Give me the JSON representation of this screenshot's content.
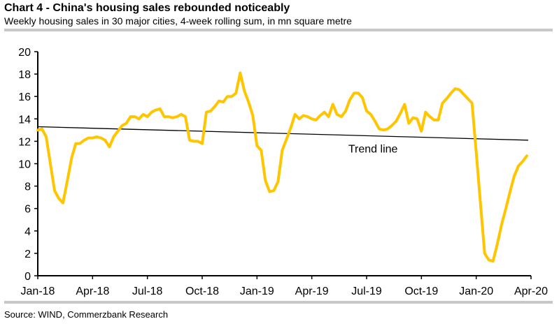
{
  "header": {
    "title": "Chart 4 - China's housing sales rebounded noticeably",
    "subtitle": "Weekly housing sales in 30 major cities, 4-week rolling sum, in mn square metre"
  },
  "footer": {
    "source": "Source: WIND, Commerzbank Research"
  },
  "chart_data": {
    "type": "line",
    "title": "Chart 4 - China's housing sales rebounded noticeably",
    "subtitle": "Weekly housing sales in 30 major cities, 4-week rolling sum, in mn square metre",
    "xlabel": "",
    "ylabel": "",
    "ylim": [
      0,
      20
    ],
    "yticks": [
      0,
      2,
      4,
      6,
      8,
      10,
      12,
      14,
      16,
      18,
      20
    ],
    "xticks": [
      "Jan-18",
      "Apr-18",
      "Jul-18",
      "Oct-18",
      "Jan-19",
      "Apr-19",
      "Jul-19",
      "Oct-19",
      "Jan-20",
      "Apr-20"
    ],
    "x_unit": "months since Jan-18",
    "xlim": [
      0,
      27
    ],
    "grid": false,
    "legend": "none",
    "colors": {
      "series": "#FFC600",
      "trend": "#000000"
    },
    "series": [
      {
        "name": "Housing sales (4-week rolling sum)",
        "x": [
          0,
          0.23,
          0.46,
          0.69,
          0.92,
          1.15,
          1.38,
          1.62,
          1.85,
          2.08,
          2.31,
          2.54,
          2.77,
          3.0,
          3.23,
          3.46,
          3.69,
          3.92,
          4.15,
          4.38,
          4.62,
          4.85,
          5.08,
          5.31,
          5.54,
          5.77,
          6.0,
          6.23,
          6.46,
          6.69,
          6.92,
          7.15,
          7.38,
          7.62,
          7.85,
          8.08,
          8.31,
          8.54,
          8.77,
          9.0,
          9.23,
          9.46,
          9.69,
          9.92,
          10.15,
          10.38,
          10.62,
          10.85,
          11.08,
          11.31,
          11.54,
          11.77,
          12.0,
          12.23,
          12.46,
          12.69,
          12.92,
          13.15,
          13.38,
          13.62,
          13.85,
          14.08,
          14.31,
          14.54,
          14.77,
          15.0,
          15.23,
          15.46,
          15.69,
          15.92,
          16.15,
          16.38,
          16.62,
          16.85,
          17.08,
          17.31,
          17.54,
          17.77,
          18.0,
          18.23,
          18.46,
          18.69,
          18.92,
          19.15,
          19.38,
          19.62,
          19.85,
          20.08,
          20.31,
          20.54,
          20.77,
          21.0,
          21.23,
          21.46,
          21.69,
          21.92,
          22.15,
          22.38,
          22.62,
          22.85,
          23.08,
          23.31,
          23.54,
          23.77,
          24.0,
          24.23,
          24.46,
          24.69,
          24.92,
          25.15,
          25.38,
          25.62,
          25.85,
          26.08,
          26.31,
          26.54,
          26.77
        ],
        "values": [
          13.0,
          13.1,
          12.4,
          10.0,
          7.6,
          6.9,
          6.5,
          8.5,
          10.5,
          11.8,
          11.8,
          12.1,
          12.3,
          12.3,
          12.4,
          12.3,
          12.1,
          11.5,
          12.4,
          12.9,
          13.4,
          13.6,
          14.2,
          14.2,
          14.0,
          14.4,
          14.2,
          14.6,
          14.8,
          14.9,
          14.2,
          14.2,
          14.1,
          14.2,
          14.4,
          14.2,
          12.1,
          12.0,
          12.0,
          11.8,
          14.6,
          14.7,
          15.1,
          15.6,
          15.5,
          16.0,
          16.0,
          16.3,
          18.1,
          16.5,
          15.5,
          14.3,
          11.6,
          11.2,
          8.5,
          7.5,
          7.6,
          8.4,
          11.2,
          12.2,
          13.2,
          14.4,
          14.0,
          14.3,
          14.2,
          14.0,
          13.9,
          14.3,
          14.6,
          14.2,
          15.3,
          14.4,
          14.2,
          14.7,
          15.7,
          16.3,
          16.3,
          15.9,
          14.7,
          14.4,
          13.8,
          13.1,
          13.0,
          13.1,
          13.4,
          13.8,
          14.5,
          15.3,
          13.6,
          14.1,
          14.0,
          12.9,
          14.6,
          14.2,
          13.9,
          13.9,
          15.4,
          15.8,
          16.3,
          16.7,
          16.6,
          16.2,
          15.8,
          15.4,
          11.0,
          6.5,
          2.0,
          1.4,
          1.3,
          2.8,
          4.5,
          6.0,
          7.5,
          8.9,
          9.8,
          10.2,
          10.7
        ]
      },
      {
        "name": "Trend line",
        "x": [
          0,
          26.85
        ],
        "values": [
          13.3,
          12.1
        ]
      }
    ],
    "annotations": [
      {
        "text": "Trend line",
        "x": 17.0,
        "y": 11.0
      }
    ]
  }
}
